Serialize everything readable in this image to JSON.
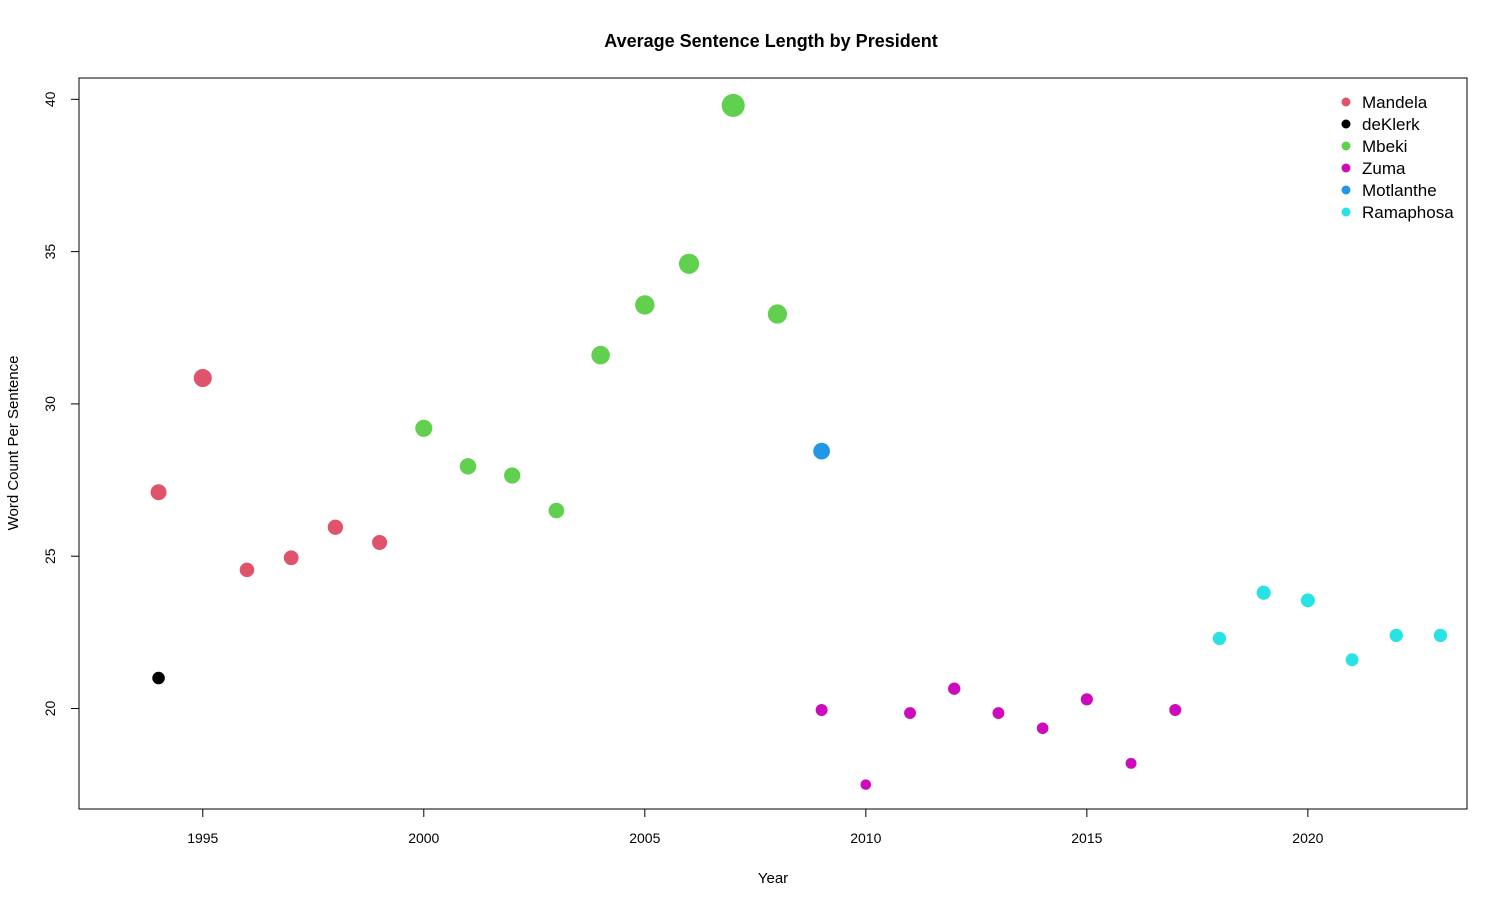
{
  "chart_data": {
    "type": "scatter",
    "title": "Average Sentence Length by President",
    "xlabel": "Year",
    "ylabel": "Word Count Per Sentence",
    "xlim": [
      1992.2,
      2023.6
    ],
    "ylim": [
      16.7,
      40.7
    ],
    "x_ticks": [
      1995,
      2000,
      2005,
      2010,
      2015,
      2020
    ],
    "x_tick_labels": [
      "1995",
      "2000",
      "2005",
      "2010",
      "2015",
      "2020"
    ],
    "y_ticks": [
      20,
      25,
      30,
      35,
      40
    ],
    "y_tick_labels": [
      "20",
      "25",
      "30",
      "35",
      "40"
    ],
    "point_size_encodes": "y",
    "legend_position": "top-right",
    "series": [
      {
        "name": "Mandela",
        "color": "#DF536B",
        "points": [
          {
            "x": 1994,
            "y": 27.1
          },
          {
            "x": 1995,
            "y": 30.85
          },
          {
            "x": 1996,
            "y": 24.55
          },
          {
            "x": 1997,
            "y": 24.95
          },
          {
            "x": 1998,
            "y": 25.95
          },
          {
            "x": 1999,
            "y": 25.45
          }
        ]
      },
      {
        "name": "deKlerk",
        "color": "#000000",
        "points": [
          {
            "x": 1994,
            "y": 21.0
          }
        ]
      },
      {
        "name": "Mbeki",
        "color": "#61D04F",
        "points": [
          {
            "x": 2000,
            "y": 29.2
          },
          {
            "x": 2001,
            "y": 27.95
          },
          {
            "x": 2002,
            "y": 27.65
          },
          {
            "x": 2003,
            "y": 26.5
          },
          {
            "x": 2004,
            "y": 31.6
          },
          {
            "x": 2005,
            "y": 33.25
          },
          {
            "x": 2006,
            "y": 34.6
          },
          {
            "x": 2007,
            "y": 39.8
          },
          {
            "x": 2008,
            "y": 32.95
          }
        ]
      },
      {
        "name": "Zuma",
        "color": "#CD0BBC",
        "points": [
          {
            "x": 2009,
            "y": 19.95
          },
          {
            "x": 2010,
            "y": 17.5
          },
          {
            "x": 2011,
            "y": 19.85
          },
          {
            "x": 2012,
            "y": 20.65
          },
          {
            "x": 2013,
            "y": 19.85
          },
          {
            "x": 2014,
            "y": 19.35
          },
          {
            "x": 2015,
            "y": 20.3
          },
          {
            "x": 2016,
            "y": 18.2
          },
          {
            "x": 2017,
            "y": 19.95
          }
        ]
      },
      {
        "name": "Motlanthe",
        "color": "#2297E6",
        "points": [
          {
            "x": 2009,
            "y": 28.45
          }
        ]
      },
      {
        "name": "Ramaphosa",
        "color": "#28E2E5",
        "points": [
          {
            "x": 2018,
            "y": 22.3
          },
          {
            "x": 2019,
            "y": 23.8
          },
          {
            "x": 2020,
            "y": 23.55
          },
          {
            "x": 2021,
            "y": 21.6
          },
          {
            "x": 2022,
            "y": 22.4
          },
          {
            "x": 2023,
            "y": 22.4
          }
        ]
      }
    ]
  }
}
